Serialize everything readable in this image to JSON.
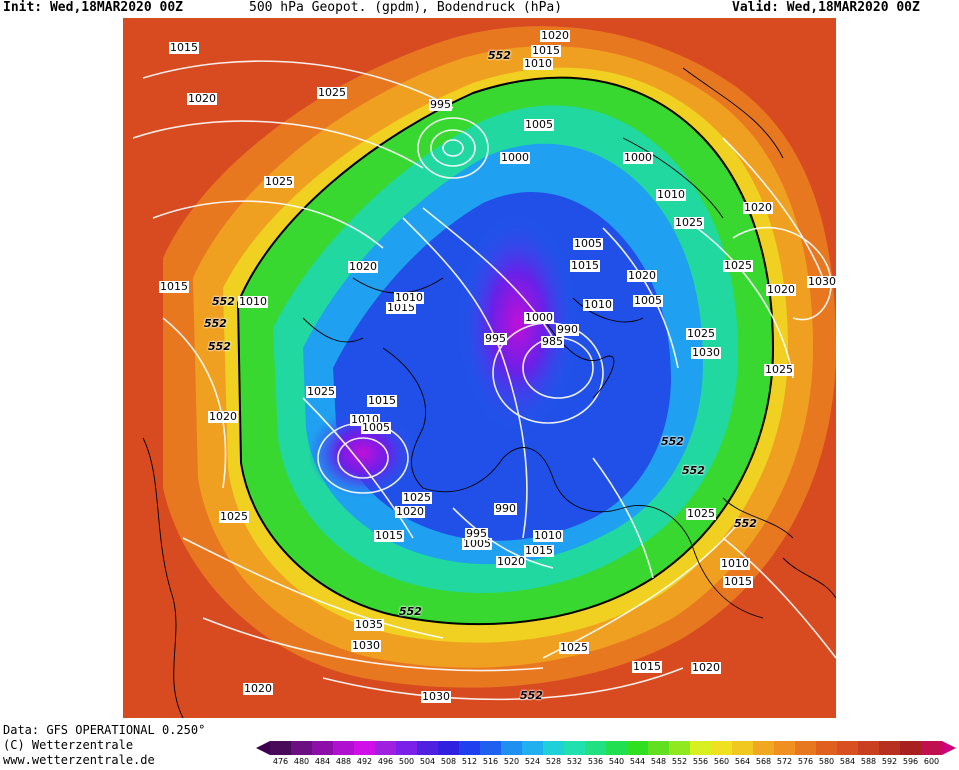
{
  "header": {
    "init": "Init: Wed,18MAR2020 00Z",
    "title": "500 hPa Geopot. (gpdm), Bodendruck (hPa)",
    "valid": "Valid: Wed,18MAR2020 00Z"
  },
  "footer": {
    "line1": "Data: GFS OPERATIONAL 0.250°",
    "line2": "(C) Wetterzentrale",
    "line3": "www.wetterzentrale.de"
  },
  "legend": {
    "values": [
      "476",
      "480",
      "484",
      "488",
      "492",
      "496",
      "500",
      "504",
      "508",
      "512",
      "516",
      "520",
      "524",
      "528",
      "532",
      "536",
      "540",
      "544",
      "548",
      "552",
      "556",
      "560",
      "564",
      "568",
      "572",
      "576",
      "580",
      "584",
      "588",
      "592",
      "596",
      "600"
    ],
    "colors": [
      "#4a0a5a",
      "#6a1080",
      "#8c10a8",
      "#b010d0",
      "#d010e8",
      "#a020e0",
      "#7a20e8",
      "#5020e0",
      "#3020e0",
      "#2040f0",
      "#2060f0",
      "#2090f0",
      "#20b0f0",
      "#20d0d8",
      "#20e0b0",
      "#20e080",
      "#20e050",
      "#30e020",
      "#60e020",
      "#90e820",
      "#d8f020",
      "#f0e020",
      "#f0c820",
      "#f0a820",
      "#f09020",
      "#e87820",
      "#e06020",
      "#d85020",
      "#c84020",
      "#b83020",
      "#a82020",
      "#c01050"
    ]
  },
  "isobar_labels": [
    "1015",
    "1020",
    "1025",
    "1025",
    "1020",
    "1015",
    "1010",
    "1020",
    "1025",
    "995",
    "1005",
    "1000",
    "1000",
    "1010",
    "1025",
    "1020",
    "1025",
    "1030",
    "1020",
    "1015",
    "1010",
    "1015",
    "1010",
    "1005",
    "1015",
    "1020",
    "1005",
    "1010",
    "995",
    "1000",
    "990",
    "985",
    "1025",
    "1030",
    "1025",
    "1015",
    "1010",
    "1005",
    "1025",
    "1020",
    "1025",
    "1020",
    "1015",
    "1005",
    "990",
    "995",
    "1010",
    "1015",
    "1020",
    "1025",
    "1025",
    "1010",
    "1015",
    "1035",
    "1030",
    "1025",
    "1015",
    "1020",
    "1020",
    "1030"
  ],
  "height_labels": [
    "552",
    "552",
    "552",
    "552",
    "552",
    "552",
    "552",
    "552",
    "552"
  ]
}
